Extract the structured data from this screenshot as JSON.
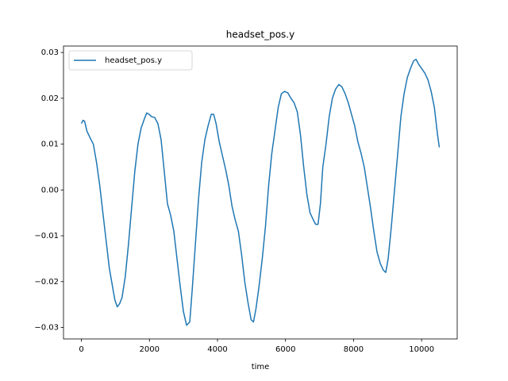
{
  "chart_data": {
    "type": "line",
    "title": "headset_pos.y",
    "xlabel": "time",
    "legend": "upper left",
    "x": [
      0,
      47,
      94,
      164,
      281,
      351,
      445,
      539,
      632,
      726,
      820,
      913,
      984,
      1054,
      1124,
      1194,
      1288,
      1382,
      1475,
      1569,
      1663,
      1756,
      1850,
      1920,
      1991,
      2061,
      2155,
      2248,
      2342,
      2436,
      2529,
      2623,
      2717,
      2810,
      2904,
      2998,
      3091,
      3185,
      3255,
      3349,
      3443,
      3536,
      3630,
      3724,
      3817,
      3888,
      3958,
      4052,
      4145,
      4239,
      4333,
      4426,
      4520,
      4614,
      4707,
      4801,
      4895,
      4988,
      5058,
      5129,
      5222,
      5316,
      5410,
      5504,
      5597,
      5691,
      5785,
      5878,
      5972,
      6066,
      6159,
      6253,
      6347,
      6440,
      6534,
      6628,
      6721,
      6815,
      6885,
      6956,
      7026,
      7096,
      7190,
      7284,
      7377,
      7471,
      7565,
      7658,
      7752,
      7846,
      7939,
      8033,
      8127,
      8220,
      8314,
      8408,
      8501,
      8595,
      8689,
      8783,
      8876,
      8946,
      9017,
      9110,
      9204,
      9298,
      9391,
      9485,
      9579,
      9672,
      9766,
      9836,
      9907,
      10000,
      10094,
      10188,
      10281,
      10375,
      10469,
      10520
    ],
    "series": [
      {
        "name": "headset_pos.y",
        "color": "#1f77b4",
        "values": [
          0.0145,
          0.0152,
          0.015,
          0.0128,
          0.011,
          0.01,
          0.006,
          0.001,
          -0.005,
          -0.011,
          -0.017,
          -0.021,
          -0.024,
          -0.0255,
          -0.0248,
          -0.0235,
          -0.019,
          -0.012,
          -0.004,
          0.004,
          0.01,
          0.0135,
          0.0155,
          0.0168,
          0.0165,
          0.016,
          0.0158,
          0.0145,
          0.011,
          0.004,
          -0.003,
          -0.0055,
          -0.009,
          -0.015,
          -0.021,
          -0.0265,
          -0.0295,
          -0.0288,
          -0.022,
          -0.012,
          -0.002,
          0.006,
          0.011,
          0.014,
          0.0165,
          0.0165,
          0.0145,
          0.0105,
          0.0075,
          0.0045,
          0.001,
          -0.0035,
          -0.0065,
          -0.009,
          -0.014,
          -0.02,
          -0.0245,
          -0.0283,
          -0.0288,
          -0.026,
          -0.021,
          -0.015,
          -0.008,
          0.001,
          0.008,
          0.013,
          0.018,
          0.021,
          0.0215,
          0.0212,
          0.02,
          0.019,
          0.017,
          0.012,
          0.005,
          -0.001,
          -0.005,
          -0.0065,
          -0.0075,
          -0.0075,
          -0.003,
          0.005,
          0.01,
          0.016,
          0.02,
          0.022,
          0.023,
          0.0225,
          0.021,
          0.019,
          0.0165,
          0.014,
          0.0105,
          0.008,
          0.005,
          0.0005,
          -0.004,
          -0.009,
          -0.0135,
          -0.016,
          -0.0175,
          -0.018,
          -0.015,
          -0.008,
          0.0,
          0.008,
          0.016,
          0.021,
          0.0245,
          0.0265,
          0.0282,
          0.0285,
          0.0275,
          0.0265,
          0.0255,
          0.024,
          0.0215,
          0.018,
          0.012,
          0.0093
        ]
      }
    ],
    "xlim": [
      -526,
      11046
    ],
    "ylim": [
      -0.0325,
      0.0314
    ],
    "xticks": [
      0,
      2000,
      4000,
      6000,
      8000,
      10000
    ],
    "yticks": [
      {
        "value": -0.03,
        "label": "−0.03"
      },
      {
        "value": -0.02,
        "label": "−0.02"
      },
      {
        "value": -0.01,
        "label": "−0.01"
      },
      {
        "value": 0,
        "label": "0.00"
      },
      {
        "value": 0.01,
        "label": "0.01"
      },
      {
        "value": 0.02,
        "label": "0.02"
      },
      {
        "value": 0.03,
        "label": "0.03"
      }
    ]
  }
}
